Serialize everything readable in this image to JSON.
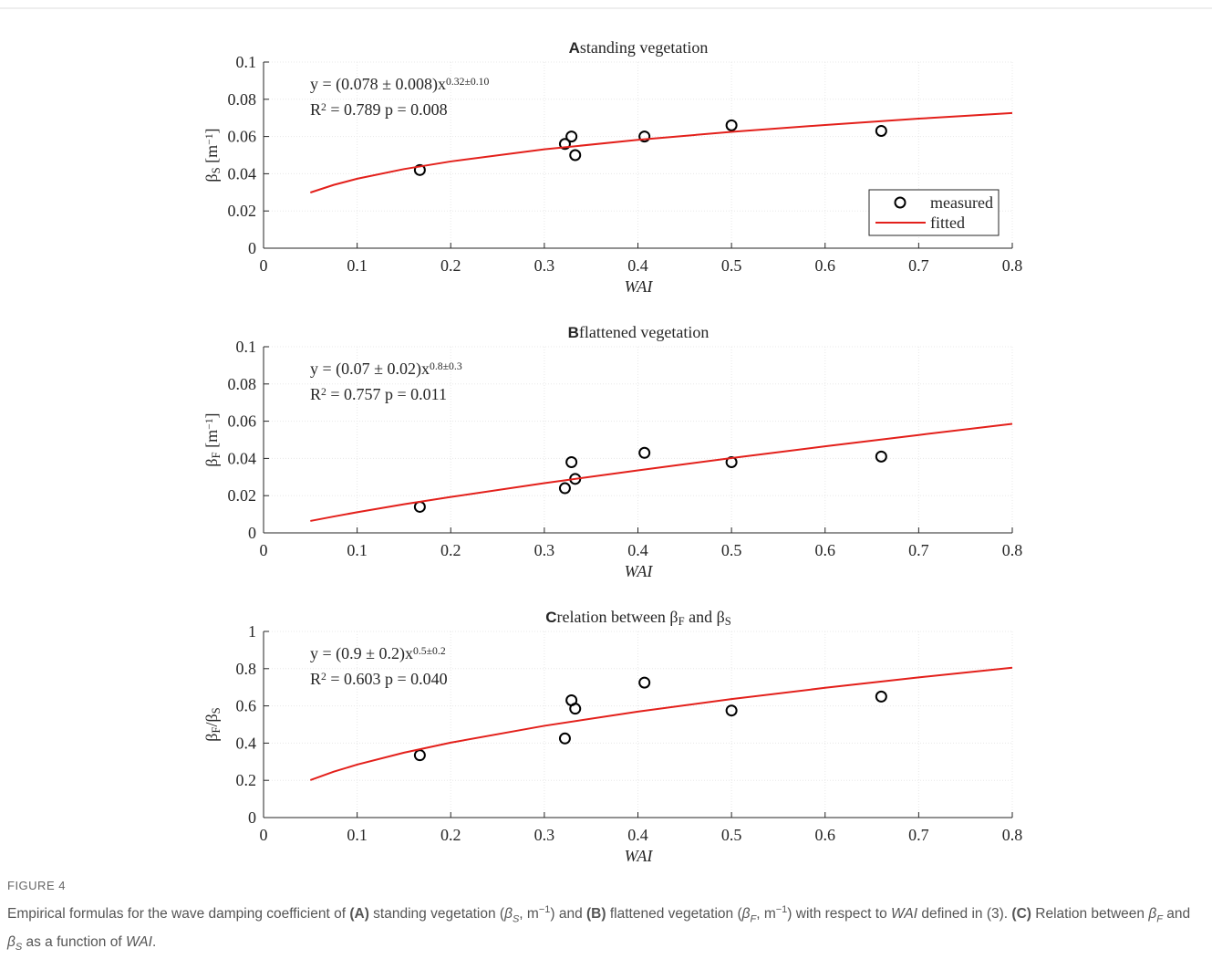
{
  "chart_data": [
    {
      "type": "scatter",
      "panel": "A",
      "title": [
        {
          "text": "standing vegetation"
        }
      ],
      "xlabel": "WAI",
      "ylabel": [
        {
          "text": "β"
        },
        {
          "text": "S",
          "script": "sub"
        },
        {
          "text": " [m"
        },
        {
          "text": "−1",
          "script": "sup"
        },
        {
          "text": "]"
        }
      ],
      "annotations": [
        [
          {
            "text": "y = (0.078 ± 0.008)x"
          },
          {
            "text": "0.32±0.10",
            "script": "sup"
          }
        ],
        [
          {
            "text": "R"
          },
          {
            "text": "2",
            "script": "sup"
          },
          {
            "text": " = 0.789  p = 0.008"
          }
        ]
      ],
      "xlim": [
        0,
        0.8
      ],
      "xticks": [
        0,
        0.1,
        0.2,
        0.3,
        0.4,
        0.5,
        0.6,
        0.7,
        0.8
      ],
      "ylim": [
        0,
        0.1
      ],
      "yticks": [
        0,
        0.02,
        0.04,
        0.06,
        0.08,
        0.1
      ],
      "grid": true,
      "legend": "lower right",
      "series": [
        {
          "name": "measured",
          "style": "markers",
          "color": "#000000",
          "x": [
            0.167,
            0.322,
            0.329,
            0.333,
            0.407,
            0.5,
            0.66
          ],
          "values": [
            0.042,
            0.056,
            0.06,
            0.05,
            0.06,
            0.066,
            0.063
          ]
        },
        {
          "name": "fitted",
          "style": "line",
          "color": "#e3201b",
          "x": [
            0.05,
            0.075,
            0.1,
            0.15,
            0.2,
            0.3,
            0.4,
            0.5,
            0.6,
            0.7,
            0.8
          ],
          "values": [
            0.0299,
            0.034,
            0.0373,
            0.0425,
            0.0466,
            0.0531,
            0.0582,
            0.0625,
            0.0662,
            0.0696,
            0.0726
          ]
        }
      ]
    },
    {
      "type": "scatter",
      "panel": "B",
      "title": [
        {
          "text": "flattened vegetation"
        }
      ],
      "xlabel": "WAI",
      "ylabel": [
        {
          "text": "β"
        },
        {
          "text": "F",
          "script": "sub"
        },
        {
          "text": " [m"
        },
        {
          "text": "−1",
          "script": "sup"
        },
        {
          "text": "]"
        }
      ],
      "annotations": [
        [
          {
            "text": "y = (0.07 ± 0.02)x"
          },
          {
            "text": "0.8±0.3",
            "script": "sup"
          }
        ],
        [
          {
            "text": "R"
          },
          {
            "text": "2",
            "script": "sup"
          },
          {
            "text": " = 0.757  p = 0.011"
          }
        ]
      ],
      "xlim": [
        0,
        0.8
      ],
      "xticks": [
        0,
        0.1,
        0.2,
        0.3,
        0.4,
        0.5,
        0.6,
        0.7,
        0.8
      ],
      "ylim": [
        0,
        0.1
      ],
      "yticks": [
        0,
        0.02,
        0.04,
        0.06,
        0.08,
        0.1
      ],
      "grid": true,
      "series": [
        {
          "style": "markers",
          "color": "#000000",
          "x": [
            0.167,
            0.322,
            0.329,
            0.333,
            0.407,
            0.5,
            0.66
          ],
          "values": [
            0.014,
            0.024,
            0.038,
            0.029,
            0.043,
            0.038,
            0.041
          ]
        },
        {
          "style": "line",
          "color": "#e3201b",
          "x": [
            0.05,
            0.075,
            0.1,
            0.15,
            0.2,
            0.3,
            0.4,
            0.5,
            0.6,
            0.7,
            0.8
          ],
          "values": [
            0.0064,
            0.0088,
            0.0111,
            0.0154,
            0.0193,
            0.0267,
            0.0336,
            0.0402,
            0.0465,
            0.0526,
            0.0586
          ]
        }
      ]
    },
    {
      "type": "scatter",
      "panel": "C",
      "title": [
        {
          "text": "relation between β"
        },
        {
          "text": "F",
          "script": "sub"
        },
        {
          "text": " and β"
        },
        {
          "text": "S",
          "script": "sub"
        }
      ],
      "xlabel": "WAI",
      "ylabel": [
        {
          "text": "β"
        },
        {
          "text": "F",
          "script": "sub"
        },
        {
          "text": "/β"
        },
        {
          "text": "S",
          "script": "sub"
        }
      ],
      "annotations": [
        [
          {
            "text": "y = (0.9 ± 0.2)x"
          },
          {
            "text": "0.5±0.2",
            "script": "sup"
          }
        ],
        [
          {
            "text": "R"
          },
          {
            "text": "2",
            "script": "sup"
          },
          {
            "text": " = 0.603  p = 0.040"
          }
        ]
      ],
      "xlim": [
        0,
        0.8
      ],
      "xticks": [
        0,
        0.1,
        0.2,
        0.3,
        0.4,
        0.5,
        0.6,
        0.7,
        0.8
      ],
      "ylim": [
        0,
        1
      ],
      "yticks": [
        0,
        0.2,
        0.4,
        0.6,
        0.8,
        1
      ],
      "grid": true,
      "series": [
        {
          "style": "markers",
          "color": "#000000",
          "x": [
            0.167,
            0.322,
            0.329,
            0.333,
            0.407,
            0.5,
            0.66
          ],
          "values": [
            0.335,
            0.425,
            0.63,
            0.585,
            0.725,
            0.575,
            0.65
          ]
        },
        {
          "style": "line",
          "color": "#e3201b",
          "x": [
            0.05,
            0.075,
            0.1,
            0.15,
            0.2,
            0.3,
            0.4,
            0.5,
            0.6,
            0.7,
            0.8
          ],
          "values": [
            0.201,
            0.2465,
            0.2846,
            0.3486,
            0.4025,
            0.493,
            0.5692,
            0.6364,
            0.6971,
            0.753,
            0.805
          ]
        }
      ]
    }
  ],
  "caption": {
    "label": "FIGURE 4",
    "text": [
      {
        "text": "Empirical formulas for the wave damping coefficient of "
      },
      {
        "text": "(A)",
        "style": "bold"
      },
      {
        "text": " standing vegetation ("
      },
      {
        "text": "β",
        "style": "italic"
      },
      {
        "text": "S",
        "style": "italic",
        "script": "sub"
      },
      {
        "text": ", m"
      },
      {
        "text": "−1",
        "script": "sup"
      },
      {
        "text": ") and "
      },
      {
        "text": "(B)",
        "style": "bold"
      },
      {
        "text": " flattened vegetation ("
      },
      {
        "text": "β",
        "style": "italic"
      },
      {
        "text": "F",
        "style": "italic",
        "script": "sub"
      },
      {
        "text": ", m"
      },
      {
        "text": "−1",
        "script": "sup"
      },
      {
        "text": ") with respect to "
      },
      {
        "text": "WAI",
        "style": "italic"
      },
      {
        "text": " defined in (3). "
      },
      {
        "text": "(C)",
        "style": "bold"
      },
      {
        "text": " Relation between "
      },
      {
        "text": "β",
        "style": "italic"
      },
      {
        "text": "F",
        "style": "italic",
        "script": "sub"
      },
      {
        "text": " and "
      },
      {
        "text": "β",
        "style": "italic"
      },
      {
        "text": "S",
        "style": "italic",
        "script": "sub"
      },
      {
        "text": " as a function of "
      },
      {
        "text": "WAI",
        "style": "italic"
      },
      {
        "text": "."
      }
    ]
  }
}
